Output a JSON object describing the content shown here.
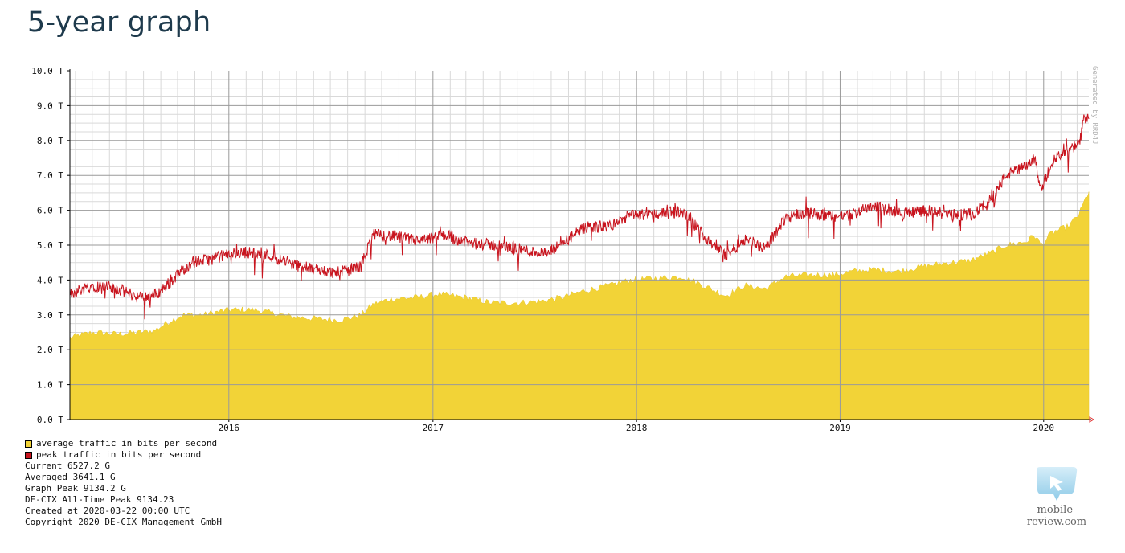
{
  "page": {
    "title": "5-year graph"
  },
  "chart_data": {
    "type": "area",
    "y_tick_labels": [
      "0.0 T",
      "1.0 T",
      "2.0 T",
      "3.0 T",
      "4.0 T",
      "5.0 T",
      "6.0 T",
      "7.0 T",
      "8.0 T",
      "9.0 T",
      "10.0 T"
    ],
    "x_tick_labels": [
      "2016",
      "2017",
      "2018",
      "2019",
      "2020"
    ],
    "ylim": [
      0,
      10
    ],
    "xlim": [
      "2015-03-22",
      "2020-03-22"
    ],
    "grid": true,
    "vertical_label": "Generated by RRD4J",
    "series": [
      {
        "name": "average traffic in bits per second",
        "color": "#f2d337",
        "style": "area",
        "points": [
          [
            "2015-03-22",
            2.35
          ],
          [
            "2015-05-01",
            2.5
          ],
          [
            "2015-06-15",
            2.45
          ],
          [
            "2015-07-20",
            2.5
          ],
          [
            "2015-08-20",
            2.55
          ],
          [
            "2015-09-15",
            2.8
          ],
          [
            "2015-10-10",
            3.0
          ],
          [
            "2015-11-15",
            3.0
          ],
          [
            "2016-01-01",
            3.15
          ],
          [
            "2016-02-15",
            3.15
          ],
          [
            "2016-03-20",
            3.05
          ],
          [
            "2016-04-20",
            2.95
          ],
          [
            "2016-06-01",
            2.9
          ],
          [
            "2016-07-20",
            2.85
          ],
          [
            "2016-08-25",
            3.0
          ],
          [
            "2016-09-15",
            3.3
          ],
          [
            "2016-10-15",
            3.45
          ],
          [
            "2016-12-01",
            3.5
          ],
          [
            "2017-01-10",
            3.6
          ],
          [
            "2017-03-01",
            3.5
          ],
          [
            "2017-04-15",
            3.35
          ],
          [
            "2017-06-01",
            3.35
          ],
          [
            "2017-07-15",
            3.4
          ],
          [
            "2017-08-20",
            3.5
          ],
          [
            "2017-10-01",
            3.7
          ],
          [
            "2017-11-15",
            3.85
          ],
          [
            "2017-12-20",
            4.0
          ],
          [
            "2018-02-01",
            4.05
          ],
          [
            "2018-03-25",
            4.1
          ],
          [
            "2018-05-01",
            3.85
          ],
          [
            "2018-06-10",
            3.55
          ],
          [
            "2018-07-15",
            3.85
          ],
          [
            "2018-08-20",
            3.75
          ],
          [
            "2018-09-25",
            4.1
          ],
          [
            "2018-11-15",
            4.15
          ],
          [
            "2018-12-20",
            4.15
          ],
          [
            "2019-01-25",
            4.25
          ],
          [
            "2019-03-01",
            4.3
          ],
          [
            "2019-04-15",
            4.25
          ],
          [
            "2019-06-01",
            4.4
          ],
          [
            "2019-07-15",
            4.5
          ],
          [
            "2019-08-20",
            4.55
          ],
          [
            "2019-10-01",
            4.8
          ],
          [
            "2019-10-25",
            5.0
          ],
          [
            "2019-12-01",
            5.1
          ],
          [
            "2019-12-15",
            5.3
          ],
          [
            "2019-12-28",
            5.0
          ],
          [
            "2020-01-15",
            5.35
          ],
          [
            "2020-02-15",
            5.55
          ],
          [
            "2020-03-05",
            5.9
          ],
          [
            "2020-03-15",
            6.3
          ],
          [
            "2020-03-22",
            6.53
          ]
        ]
      },
      {
        "name": "peak traffic in bits per second",
        "color": "#c8141e",
        "style": "line",
        "points": [
          [
            "2015-03-22",
            3.6
          ],
          [
            "2015-05-01",
            3.85
          ],
          [
            "2015-06-15",
            3.75
          ],
          [
            "2015-07-25",
            3.5
          ],
          [
            "2015-08-25",
            3.6
          ],
          [
            "2015-09-25",
            4.05
          ],
          [
            "2015-10-25",
            4.5
          ],
          [
            "2015-12-01",
            4.6
          ],
          [
            "2016-01-01",
            4.75
          ],
          [
            "2016-02-01",
            4.8
          ],
          [
            "2016-03-15",
            4.7
          ],
          [
            "2016-04-25",
            4.45
          ],
          [
            "2016-06-01",
            4.3
          ],
          [
            "2016-07-15",
            4.2
          ],
          [
            "2016-08-25",
            4.4
          ],
          [
            "2016-09-15",
            5.3
          ],
          [
            "2016-10-25",
            5.25
          ],
          [
            "2016-12-10",
            5.1
          ],
          [
            "2017-01-20",
            5.3
          ],
          [
            "2017-03-10",
            5.05
          ],
          [
            "2017-04-25",
            5.0
          ],
          [
            "2017-06-15",
            4.85
          ],
          [
            "2017-07-25",
            4.75
          ],
          [
            "2017-08-20",
            5.05
          ],
          [
            "2017-10-01",
            5.5
          ],
          [
            "2017-11-15",
            5.55
          ],
          [
            "2017-12-20",
            5.85
          ],
          [
            "2018-02-01",
            5.9
          ],
          [
            "2018-03-25",
            5.95
          ],
          [
            "2018-05-01",
            5.3
          ],
          [
            "2018-06-10",
            4.7
          ],
          [
            "2018-07-15",
            5.2
          ],
          [
            "2018-08-20",
            4.9
          ],
          [
            "2018-09-25",
            5.8
          ],
          [
            "2018-11-01",
            5.95
          ],
          [
            "2018-12-20",
            5.8
          ],
          [
            "2019-01-25",
            5.9
          ],
          [
            "2019-03-01",
            6.15
          ],
          [
            "2019-04-20",
            5.9
          ],
          [
            "2019-06-01",
            6.0
          ],
          [
            "2019-07-20",
            5.85
          ],
          [
            "2019-08-25",
            5.9
          ],
          [
            "2019-09-25",
            6.2
          ],
          [
            "2019-10-25",
            7.0
          ],
          [
            "2019-12-01",
            7.25
          ],
          [
            "2019-12-15",
            7.5
          ],
          [
            "2019-12-28",
            6.6
          ],
          [
            "2020-01-15",
            7.4
          ],
          [
            "2020-02-15",
            7.7
          ],
          [
            "2020-03-05",
            7.9
          ],
          [
            "2020-03-13",
            8.6
          ],
          [
            "2020-03-22",
            8.75
          ]
        ]
      }
    ]
  },
  "legend": {
    "items": [
      {
        "label": "average traffic in bits per second",
        "color": "#f2d337"
      },
      {
        "label": "peak traffic in bits per second",
        "color": "#c8141e"
      }
    ]
  },
  "stats": {
    "current": "Current 6527.2 G",
    "averaged": "Averaged 3641.1 G",
    "graph_peak": "Graph Peak 9134.2 G",
    "all_time_peak": "DE-CIX All-Time Peak 9134.23",
    "created": "Created at 2020-03-22 00:00 UTC",
    "copyright": "Copyright 2020 DE-CIX Management GmbH"
  },
  "watermark": {
    "text": "mobile-review.com"
  }
}
